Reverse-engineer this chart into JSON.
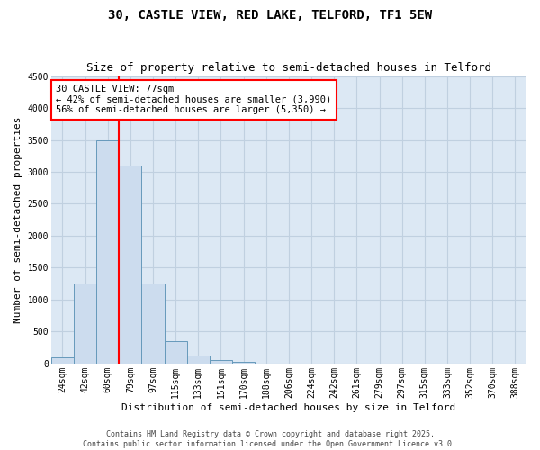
{
  "title": "30, CASTLE VIEW, RED LAKE, TELFORD, TF1 5EW",
  "subtitle": "Size of property relative to semi-detached houses in Telford",
  "xlabel": "Distribution of semi-detached houses by size in Telford",
  "ylabel": "Number of semi-detached properties",
  "categories": [
    "24sqm",
    "42sqm",
    "60sqm",
    "79sqm",
    "97sqm",
    "115sqm",
    "133sqm",
    "151sqm",
    "170sqm",
    "188sqm",
    "206sqm",
    "224sqm",
    "242sqm",
    "261sqm",
    "279sqm",
    "297sqm",
    "315sqm",
    "333sqm",
    "352sqm",
    "370sqm",
    "388sqm"
  ],
  "values": [
    100,
    1250,
    3500,
    3100,
    1250,
    350,
    120,
    60,
    30,
    0,
    0,
    0,
    0,
    0,
    0,
    0,
    0,
    0,
    0,
    0,
    0
  ],
  "bar_color": "#ccdcee",
  "bar_edge_color": "#6699bb",
  "property_line_index": 3.0,
  "property_line_color": "red",
  "annotation_text": "30 CASTLE VIEW: 77sqm\n← 42% of semi-detached houses are smaller (3,990)\n56% of semi-detached houses are larger (5,350) →",
  "annotation_box_facecolor": "white",
  "annotation_box_edgecolor": "red",
  "ylim": [
    0,
    4500
  ],
  "yticks": [
    0,
    500,
    1000,
    1500,
    2000,
    2500,
    3000,
    3500,
    4000,
    4500
  ],
  "footer_line1": "Contains HM Land Registry data © Crown copyright and database right 2025.",
  "footer_line2": "Contains public sector information licensed under the Open Government Licence v3.0.",
  "bg_color": "#e8f0f8",
  "plot_bg_color": "#dce8f4",
  "grid_color": "#c0d0e0",
  "title_fontsize": 10,
  "subtitle_fontsize": 9,
  "xlabel_fontsize": 8,
  "ylabel_fontsize": 8,
  "tick_fontsize": 7,
  "annotation_fontsize": 7.5,
  "footer_fontsize": 6
}
